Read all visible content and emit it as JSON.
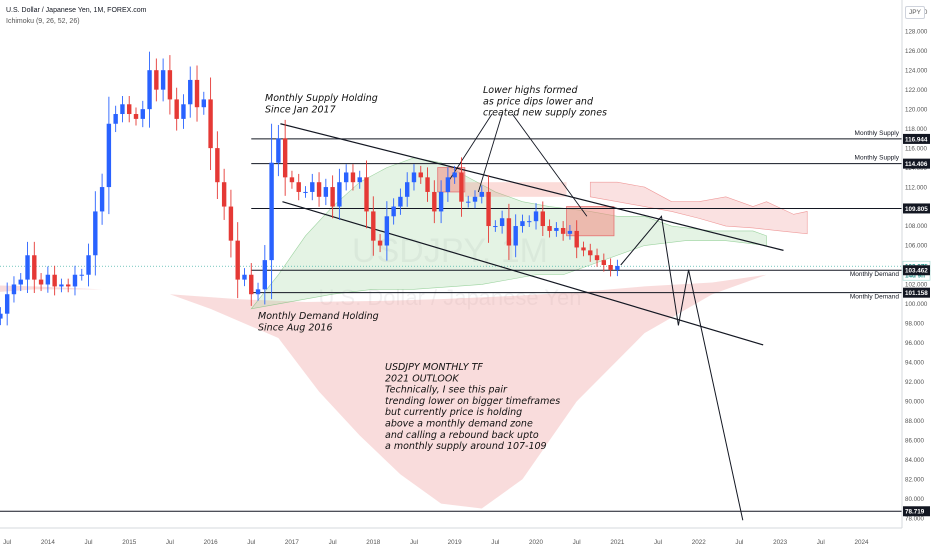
{
  "header": {
    "title": "U.S. Dollar / Japanese Yen, 1M, FOREX.com",
    "indicator": "Ichimoku (9, 26, 52, 26)",
    "currency_badge": "JPY"
  },
  "watermark": {
    "symbol": "USDJPY, 1M",
    "name": "U.S. Dollar / Japanese Yen"
  },
  "colors": {
    "bull": "#2962ff",
    "bear": "#e53935",
    "cloud_green": "#a5d6a7",
    "cloud_red": "#ef9a9a",
    "zone": "#f28b82",
    "price_line": "#26a69a"
  },
  "chart_data": {
    "type": "candlestick",
    "timeframe": "1M",
    "x_start": "2013-01",
    "x_ticks": [
      "Jul",
      "2014",
      "Jul",
      "2015",
      "Jul",
      "2016",
      "Jul",
      "2017",
      "Jul",
      "2018",
      "Jul",
      "2019",
      "Jul",
      "2020",
      "Jul",
      "2021",
      "Jul",
      "2022",
      "Jul",
      "2023",
      "Jul",
      "2024"
    ],
    "y_range": [
      77,
      131
    ],
    "y_ticks": [
      78,
      80,
      82,
      84,
      86,
      88,
      90,
      92,
      94,
      96,
      98,
      100,
      102,
      104,
      106,
      108,
      110,
      112,
      114,
      116,
      118,
      120,
      122,
      124,
      126,
      128,
      130
    ],
    "closes": [
      99.5,
      96.5,
      97.5,
      98.5,
      98.5,
      99.0,
      101.0,
      102.0,
      102.5,
      105.0,
      102.5,
      102.0,
      103.0,
      101.8,
      102.0,
      101.8,
      103.0,
      103.0,
      105.0,
      109.5,
      112.0,
      118.5,
      119.5,
      120.5,
      119.5,
      119.0,
      120.0,
      124.0,
      122.0,
      124.0,
      121.0,
      119.0,
      120.5,
      123.0,
      120.2,
      121.0,
      116.0,
      112.5,
      110.0,
      106.5,
      102.5,
      103.0,
      101.0,
      101.5,
      104.5,
      114.5,
      117.0,
      113.0,
      112.5,
      111.5,
      111.5,
      112.5,
      111.0,
      112.0,
      110.0,
      112.5,
      113.5,
      112.5,
      113.0,
      109.5,
      106.5,
      106.0,
      109.0,
      110.0,
      111.0,
      112.5,
      113.5,
      113.0,
      111.5,
      109.5,
      111.5,
      113.0,
      113.5,
      110.5,
      110.5,
      111.0,
      111.5,
      108.0,
      108.0,
      108.8,
      106.0,
      108.0,
      108.5,
      108.5,
      109.5,
      108.0,
      107.5,
      107.8,
      107.2,
      107.5,
      105.8,
      105.5,
      105.0,
      104.5,
      104.0,
      103.5,
      103.9
    ],
    "series": [
      {
        "name": "Price",
        "last": 103.875
      },
      {
        "name": "Tenkan-sen",
        "values": [
          95,
          96,
          97,
          98.5,
          99.5,
          101.5,
          101.5,
          102,
          102.5,
          102.5,
          102,
          102,
          101.5,
          102,
          102.5,
          103.5,
          106,
          108.5,
          110.5,
          113.5,
          116,
          117,
          118.5,
          118.5,
          120,
          120,
          121,
          122,
          122.5,
          121,
          119,
          118.5,
          119,
          119,
          118,
          115,
          112,
          110,
          108,
          106,
          106,
          105.5,
          108,
          110,
          113,
          113.5,
          113.5,
          113.5,
          112,
          112,
          112.5,
          111.5,
          111.5,
          111.5,
          111.5,
          111.5,
          111.5,
          110.5,
          110,
          109.5,
          109.5,
          109.5,
          109.5,
          110.5,
          110.5,
          110.5,
          110.5,
          110.5,
          110.5,
          111,
          111.5,
          111.5,
          111,
          111,
          110.5,
          109.5,
          109,
          109,
          108.5,
          108.5,
          108.5,
          108.5,
          108,
          108,
          108,
          107.5,
          107.5,
          107,
          106.5,
          106,
          105.5,
          105.5,
          105,
          104.5,
          104.5
        ]
      }
    ],
    "horizontal_levels": [
      {
        "label": "Monthly Supply",
        "value": 116.944
      },
      {
        "label": "Monthly Supply",
        "value": 114.406
      },
      {
        "label": "",
        "value": 109.805
      },
      {
        "label": "Monthly Demand",
        "value": 103.462
      },
      {
        "label": "Monthly Demand",
        "value": 101.158
      },
      {
        "label": "",
        "value": 78.719
      }
    ],
    "price_labels": [
      "116.944",
      "114.406",
      "109.805",
      "103.875",
      "14d 9h",
      "103.462",
      "101.158",
      "78.719"
    ],
    "annotations": [
      "Monthly Supply Holding\nSince Jan 2017",
      "Lower highs formed\nas price dips lower and\ncreated new supply zones",
      "Monthly Demand Holding\nSince Aug 2016",
      "USDJPY MONTHLY TF\n2021 OUTLOOK\nTechnically, I see this pair\ntrending lower on bigger timeframes\nbut currently price is holding\nabove a monthly demand zone\nand calling a rebound back upto\na monthly supply around 107-109"
    ]
  }
}
